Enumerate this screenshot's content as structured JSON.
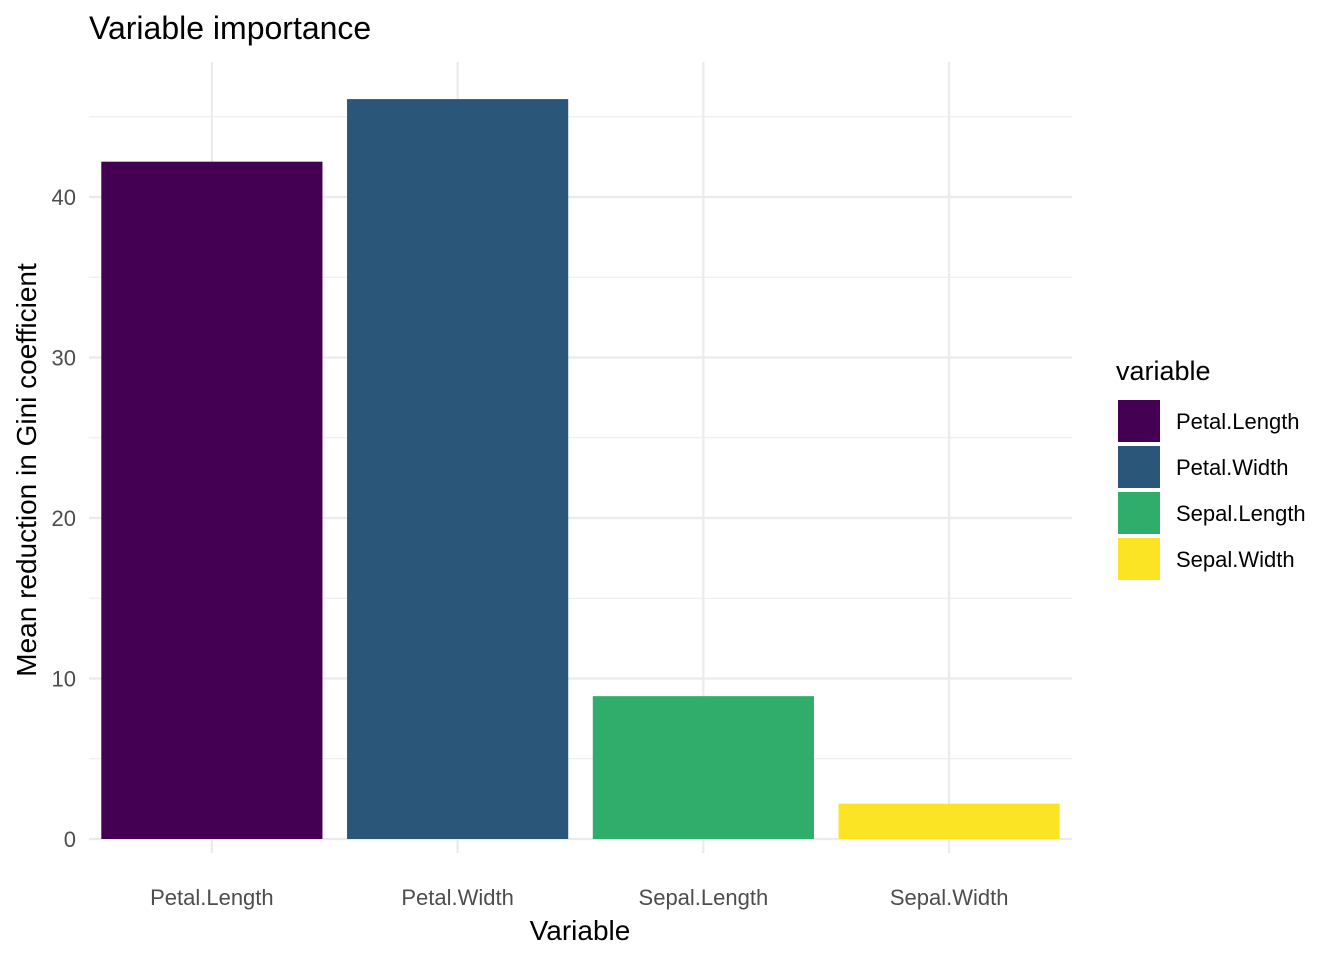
{
  "chart_data": {
    "type": "bar",
    "title": "Variable importance",
    "xlabel": "Variable",
    "ylabel": "Mean reduction in Gini coefficient",
    "categories": [
      "Petal.Length",
      "Petal.Width",
      "Sepal.Length",
      "Sepal.Width"
    ],
    "values": [
      42.2,
      46.1,
      8.9,
      2.2
    ],
    "colors": [
      "#440154",
      "#2a5779",
      "#30ad6a",
      "#fbe423"
    ],
    "ylim": [
      0,
      48.4
    ],
    "yticks": [
      0,
      10,
      20,
      30,
      40
    ],
    "grid": true,
    "legend": {
      "title": "variable",
      "placement": "right",
      "entries": [
        "Petal.Length",
        "Petal.Width",
        "Sepal.Length",
        "Sepal.Width"
      ]
    }
  }
}
